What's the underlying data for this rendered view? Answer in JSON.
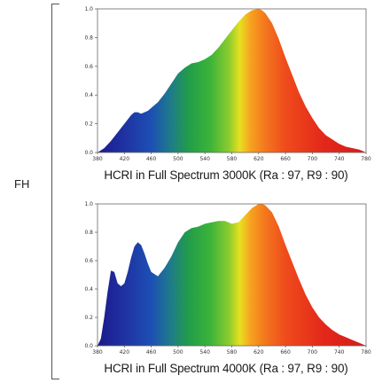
{
  "side_label": "FH",
  "chart_data": [
    {
      "type": "area",
      "title": "HCRI in Full Spectrum 3000K (Ra : 97, R9 : 90)",
      "xlabel": "",
      "ylabel": "",
      "xlim": [
        380,
        780
      ],
      "ylim": [
        0,
        1.0
      ],
      "x_ticks": [
        "380",
        "420",
        "460",
        "500",
        "540",
        "580",
        "620",
        "660",
        "700",
        "740",
        "780"
      ],
      "y_ticks": [
        "0.0",
        "0.2",
        "0.4",
        "0.6",
        "0.8",
        "1.0"
      ],
      "series": [
        {
          "x": [
            380,
            390,
            400,
            410,
            420,
            430,
            435,
            440,
            445,
            450,
            455,
            460,
            470,
            480,
            490,
            500,
            510,
            520,
            530,
            540,
            550,
            560,
            570,
            580,
            590,
            600,
            610,
            620,
            625,
            630,
            640,
            650,
            660,
            670,
            680,
            690,
            700,
            710,
            720,
            730,
            740,
            750,
            760,
            770,
            780
          ],
          "values": [
            0.0,
            0.03,
            0.08,
            0.14,
            0.2,
            0.26,
            0.28,
            0.28,
            0.27,
            0.28,
            0.29,
            0.31,
            0.35,
            0.41,
            0.48,
            0.55,
            0.59,
            0.62,
            0.63,
            0.65,
            0.68,
            0.73,
            0.79,
            0.85,
            0.91,
            0.96,
            0.99,
            1.0,
            0.99,
            0.97,
            0.9,
            0.79,
            0.66,
            0.54,
            0.42,
            0.32,
            0.24,
            0.17,
            0.12,
            0.09,
            0.06,
            0.04,
            0.03,
            0.02,
            0.0
          ]
        }
      ]
    },
    {
      "type": "area",
      "title": "HCRI in Full Spectrum 4000K (Ra : 97, R9 : 90)",
      "xlabel": "",
      "ylabel": "",
      "xlim": [
        380,
        780
      ],
      "ylim": [
        0,
        1.0
      ],
      "x_ticks": [
        "380",
        "420",
        "460",
        "500",
        "540",
        "580",
        "620",
        "660",
        "700",
        "740",
        "780"
      ],
      "y_ticks": [
        "0.0",
        "0.2",
        "0.4",
        "0.6",
        "0.8",
        "1.0"
      ],
      "series": [
        {
          "x": [
            380,
            385,
            390,
            395,
            400,
            405,
            410,
            415,
            420,
            425,
            430,
            435,
            440,
            445,
            450,
            455,
            460,
            470,
            480,
            490,
            500,
            510,
            520,
            530,
            540,
            550,
            560,
            570,
            580,
            590,
            600,
            610,
            620,
            625,
            630,
            640,
            650,
            660,
            670,
            680,
            690,
            700,
            710,
            720,
            730,
            740,
            750,
            760,
            770,
            780
          ],
          "values": [
            0.0,
            0.05,
            0.2,
            0.38,
            0.53,
            0.52,
            0.44,
            0.42,
            0.44,
            0.52,
            0.62,
            0.7,
            0.73,
            0.71,
            0.65,
            0.58,
            0.52,
            0.49,
            0.55,
            0.63,
            0.73,
            0.8,
            0.83,
            0.84,
            0.86,
            0.87,
            0.88,
            0.88,
            0.86,
            0.87,
            0.92,
            0.97,
            1.0,
            1.0,
            0.99,
            0.94,
            0.84,
            0.71,
            0.59,
            0.47,
            0.36,
            0.27,
            0.2,
            0.15,
            0.11,
            0.08,
            0.06,
            0.04,
            0.02,
            0.0
          ]
        }
      ]
    }
  ]
}
